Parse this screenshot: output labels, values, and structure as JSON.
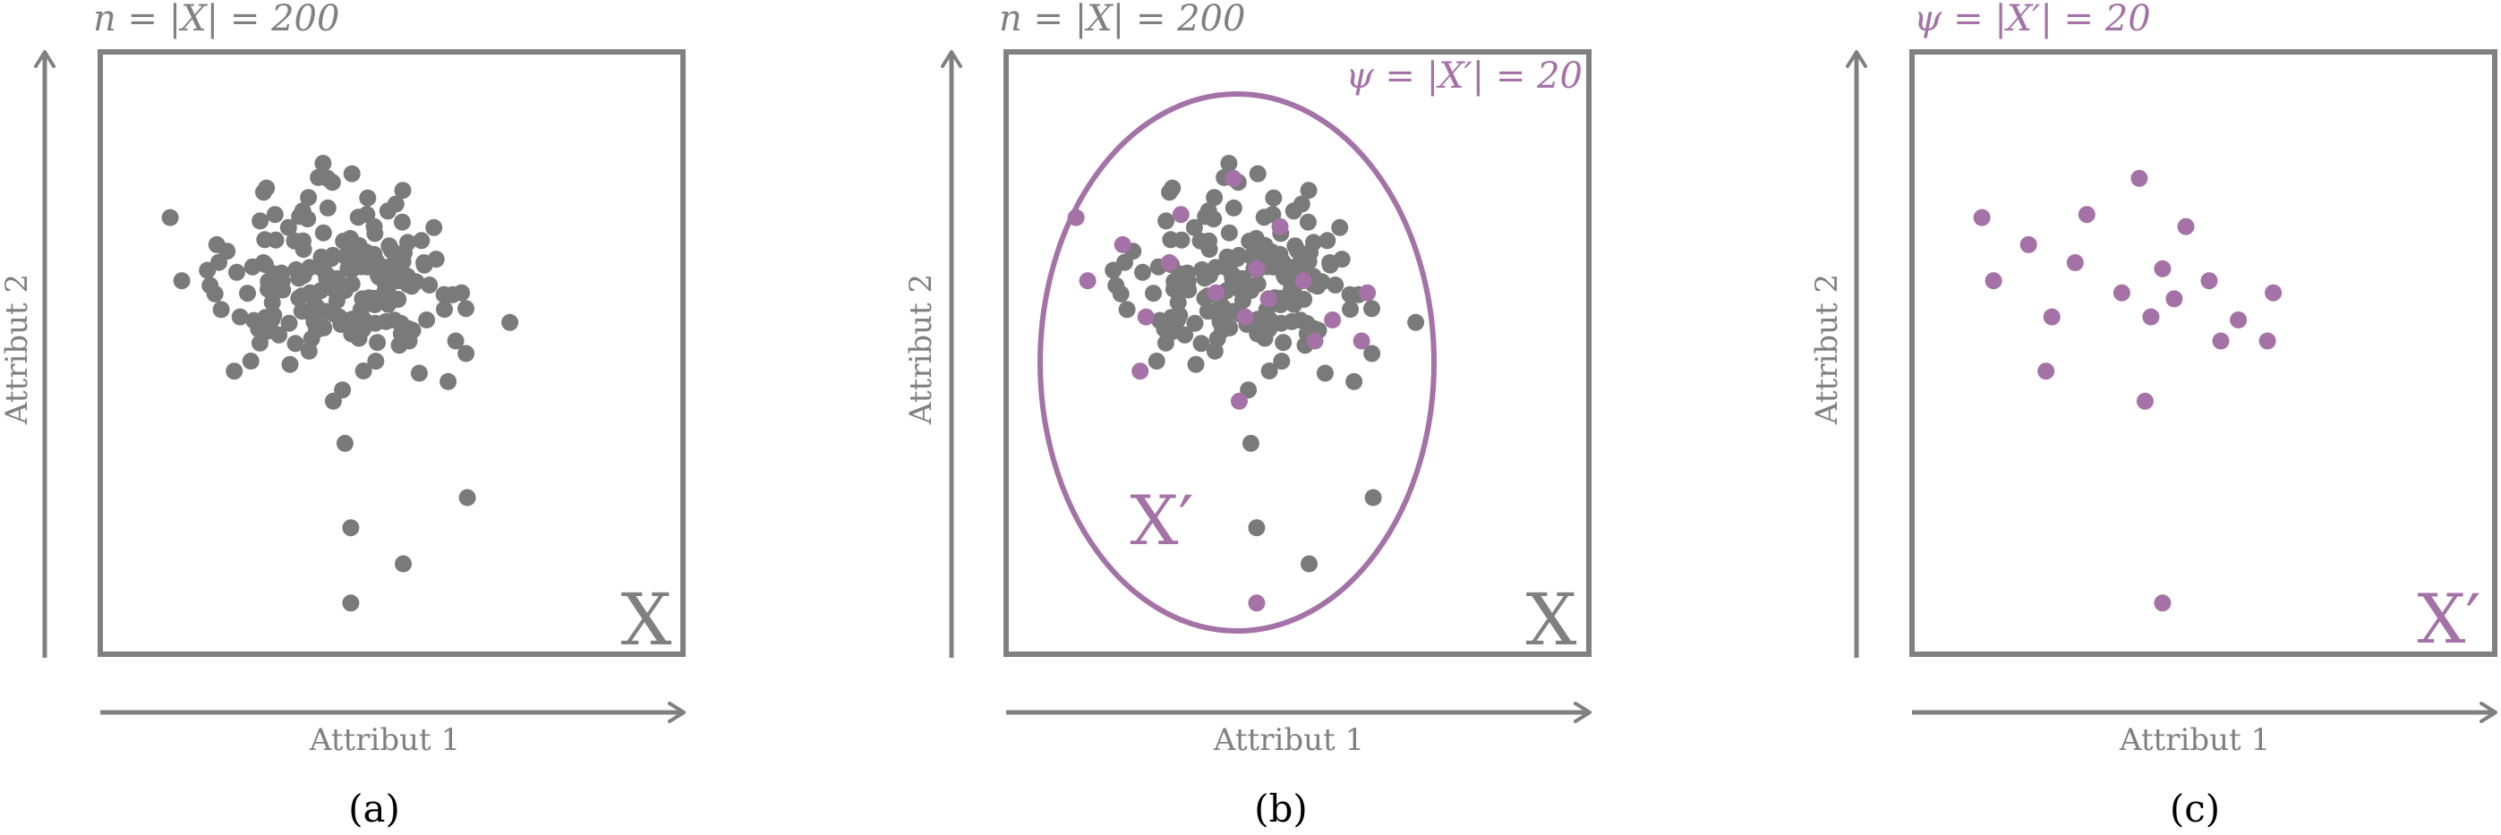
{
  "colors": {
    "gray": "#7a7a7a",
    "frame": "#808080",
    "purple": "#a472a6"
  },
  "panels": [
    {
      "id": "a",
      "caption": "(a)",
      "top_label": "n = |X| = 200",
      "top_label_color": "gray",
      "set_label": "X",
      "set_label_color": "gray",
      "x_axis_label": "Attribut 1",
      "y_axis_label": "Attribut 2"
    },
    {
      "id": "b",
      "caption": "(b)",
      "top_label": "n = |X| = 200",
      "top_label_color": "gray",
      "subset_label": "ψ = |X′| = 20",
      "ellipse_label": "X′",
      "set_label": "X",
      "set_label_color": "gray",
      "x_axis_label": "Attribut 1",
      "y_axis_label": "Attribut 2"
    },
    {
      "id": "c",
      "caption": "(c)",
      "top_label": "ψ = |X′| = 20",
      "top_label_color": "purple",
      "set_label": "X′",
      "set_label_color": "purple",
      "x_axis_label": "Attribut 1",
      "y_axis_label": "Attribut 2"
    }
  ],
  "sample_points": [
    [
      0.12,
      0.725
    ],
    [
      0.2,
      0.68
    ],
    [
      0.3,
      0.73
    ],
    [
      0.39,
      0.79
    ],
    [
      0.14,
      0.62
    ],
    [
      0.28,
      0.65
    ],
    [
      0.43,
      0.64
    ],
    [
      0.47,
      0.71
    ],
    [
      0.51,
      0.62
    ],
    [
      0.36,
      0.6
    ],
    [
      0.45,
      0.59
    ],
    [
      0.41,
      0.56
    ],
    [
      0.62,
      0.6
    ],
    [
      0.24,
      0.56
    ],
    [
      0.56,
      0.555
    ],
    [
      0.53,
      0.52
    ],
    [
      0.23,
      0.47
    ],
    [
      0.61,
      0.52
    ],
    [
      0.4,
      0.42
    ],
    [
      0.43,
      0.085
    ]
  ]
}
